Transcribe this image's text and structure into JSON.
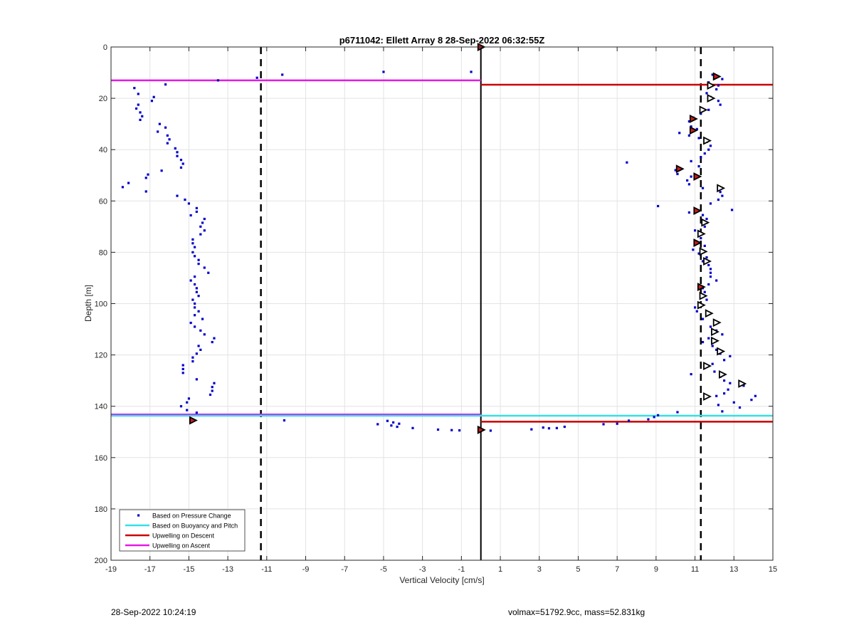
{
  "chart_data": {
    "type": "scatter",
    "title": "p6711042: Ellett Array 8 28-Sep-2022 06:32:55Z",
    "xlabel": "Vertical Velocity [cm/s]",
    "ylabel": "Depth [m]",
    "xlim": [
      -19,
      15
    ],
    "ylim": [
      0,
      200
    ],
    "y_reversed": true,
    "grid": true,
    "legend_position": "bottom-left",
    "xticks": [
      -19,
      -17,
      -15,
      -13,
      -11,
      -9,
      -7,
      -5,
      -3,
      -1,
      1,
      3,
      5,
      7,
      9,
      11,
      13,
      15
    ],
    "xtick_labels": [
      "-19",
      "-17",
      "-15",
      "-13",
      "-11",
      "-9",
      "-7",
      "-5",
      "-3",
      "-1",
      "1",
      "3",
      "5",
      "7",
      "9",
      "11",
      "13",
      "15"
    ],
    "yticks": [
      0,
      20,
      40,
      60,
      80,
      100,
      120,
      140,
      160,
      180,
      200
    ],
    "ytick_labels": [
      "0",
      "20",
      "40",
      "60",
      "80",
      "100",
      "120",
      "140",
      "160",
      "180",
      "200"
    ],
    "legend": [
      {
        "label": "Based on Pressure Change",
        "kind": "marker",
        "color": "#0000cc"
      },
      {
        "label": "Based on Buoyancy and Pitch",
        "kind": "line",
        "color": "#33e0e6"
      },
      {
        "label": "Upwelling on Descent",
        "kind": "line",
        "color": "#cc0000"
      },
      {
        "label": "Upwelling on Ascent",
        "kind": "line",
        "color": "#e619e6"
      }
    ],
    "reference_lines": {
      "vertical_solid": [
        0
      ],
      "vertical_dashed": [
        -11.3,
        11.3
      ],
      "solid_color": "#000000",
      "dashed_color": "#000000"
    },
    "upwelling_segments": [
      {
        "series": "Upwelling on Ascent",
        "color": "#e619e6",
        "x": [
          -19,
          0
        ],
        "y": 13
      },
      {
        "series": "Upwelling on Ascent",
        "color": "#e619e6",
        "x": [
          -19,
          0
        ],
        "y": 143.2
      },
      {
        "series": "Upwelling on Descent",
        "color": "#cc0000",
        "x": [
          0,
          15
        ],
        "y": 14.7
      },
      {
        "series": "Upwelling on Descent",
        "color": "#cc0000",
        "x": [
          0,
          15
        ],
        "y": 146
      },
      {
        "series": "Based on Buoyancy and Pitch",
        "color": "#33e0e6",
        "x": [
          -19,
          15
        ],
        "y": 143.7
      }
    ],
    "pressure_change_points": [
      [
        -13.5,
        13
      ],
      [
        -11.5,
        12
      ],
      [
        -10.2,
        10.8
      ],
      [
        -5,
        9.7
      ],
      [
        -0.5,
        9.7
      ],
      [
        -16.2,
        14.6
      ],
      [
        -17.8,
        16
      ],
      [
        -17.6,
        18.3
      ],
      [
        -16.8,
        19.5
      ],
      [
        -16.9,
        21
      ],
      [
        -17.6,
        22.5
      ],
      [
        -17.7,
        24
      ],
      [
        -17.5,
        25.5
      ],
      [
        -17.4,
        27
      ],
      [
        -17.5,
        28.4
      ],
      [
        -16.5,
        30
      ],
      [
        -16.2,
        31.4
      ],
      [
        -16.6,
        33
      ],
      [
        -16.1,
        34.5
      ],
      [
        -16.0,
        36
      ],
      [
        -16.1,
        37.5
      ],
      [
        -15.7,
        39.5
      ],
      [
        -15.6,
        41
      ],
      [
        -15.6,
        42.5
      ],
      [
        -15.4,
        44
      ],
      [
        -15.3,
        45.5
      ],
      [
        -15.4,
        47
      ],
      [
        -16.4,
        48.2
      ],
      [
        -17.1,
        49.7
      ],
      [
        -17.2,
        51
      ],
      [
        -18.1,
        53
      ],
      [
        -18.4,
        54.6
      ],
      [
        -17.2,
        56.3
      ],
      [
        -15.6,
        58
      ],
      [
        -15.2,
        59.5
      ],
      [
        -15.0,
        61
      ],
      [
        -14.6,
        62.8
      ],
      [
        -14.6,
        64.2
      ],
      [
        -14.9,
        65.6
      ],
      [
        -14.2,
        67
      ],
      [
        -14.3,
        68.5
      ],
      [
        -14.4,
        70
      ],
      [
        -14.2,
        71.5
      ],
      [
        -14.4,
        73
      ],
      [
        -14.8,
        75
      ],
      [
        -14.8,
        76.5
      ],
      [
        -14.7,
        78
      ],
      [
        -14.8,
        80
      ],
      [
        -14.7,
        81.5
      ],
      [
        -14.5,
        83
      ],
      [
        -14.5,
        84.5
      ],
      [
        -14.2,
        86
      ],
      [
        -14.0,
        88
      ],
      [
        -14.7,
        89.5
      ],
      [
        -14.9,
        91
      ],
      [
        -14.7,
        92.5
      ],
      [
        -14.6,
        94
      ],
      [
        -14.6,
        95.5
      ],
      [
        -14.5,
        97
      ],
      [
        -14.8,
        98.5
      ],
      [
        -14.7,
        100
      ],
      [
        -14.7,
        101.5
      ],
      [
        -14.5,
        103
      ],
      [
        -14.7,
        104.5
      ],
      [
        -14.3,
        106
      ],
      [
        -14.9,
        107.5
      ],
      [
        -14.7,
        109
      ],
      [
        -14.4,
        110.5
      ],
      [
        -14.2,
        112
      ],
      [
        -13.7,
        113.5
      ],
      [
        -13.8,
        115
      ],
      [
        -14.5,
        116.5
      ],
      [
        -14.4,
        118
      ],
      [
        -14.6,
        119.5
      ],
      [
        -14.8,
        121
      ],
      [
        -14.8,
        122.5
      ],
      [
        -15.3,
        124
      ],
      [
        -15.3,
        125.5
      ],
      [
        -15.3,
        127
      ],
      [
        -14.6,
        129.5
      ],
      [
        -13.7,
        131
      ],
      [
        -13.8,
        132.5
      ],
      [
        -13.8,
        134
      ],
      [
        -13.9,
        135.5
      ],
      [
        -15.0,
        137
      ],
      [
        -15.1,
        138.5
      ],
      [
        -15.4,
        140
      ],
      [
        -15.1,
        141.5
      ],
      [
        -14.6,
        142.5
      ],
      [
        -10.1,
        145.5
      ],
      [
        -4.8,
        145.7
      ],
      [
        -4.5,
        146.3
      ],
      [
        -4.2,
        146.8
      ],
      [
        -5.3,
        147
      ],
      [
        -4.6,
        147.5
      ],
      [
        -4.3,
        148
      ],
      [
        -3.5,
        148.5
      ],
      [
        -2.2,
        149.1
      ],
      [
        -1.5,
        149.3
      ],
      [
        -1.1,
        149.4
      ],
      [
        0.5,
        149.5
      ],
      [
        2.6,
        149
      ],
      [
        3.2,
        148.3
      ],
      [
        3.5,
        148.6
      ],
      [
        3.9,
        148.5
      ],
      [
        4.3,
        148
      ],
      [
        6.3,
        147
      ],
      [
        7.0,
        146.8
      ],
      [
        7.6,
        145.6
      ],
      [
        8.6,
        145.1
      ],
      [
        8.9,
        144.2
      ],
      [
        9.1,
        143.5
      ],
      [
        10.1,
        142.3
      ],
      [
        12.4,
        142
      ],
      [
        11.9,
        10.8
      ],
      [
        12.4,
        12.5
      ],
      [
        11.7,
        13.8
      ],
      [
        12.2,
        15
      ],
      [
        12.1,
        16.5
      ],
      [
        11.6,
        18
      ],
      [
        11.8,
        19.5
      ],
      [
        12.2,
        21
      ],
      [
        12.3,
        22.5
      ],
      [
        11.7,
        24.5
      ],
      [
        11.3,
        26
      ],
      [
        10.9,
        27.5
      ],
      [
        10.7,
        29
      ],
      [
        10.8,
        31
      ],
      [
        11.1,
        32
      ],
      [
        10.2,
        33.5
      ],
      [
        10.7,
        34.5
      ],
      [
        11.2,
        35.5
      ],
      [
        11.6,
        37
      ],
      [
        11.8,
        38.5
      ],
      [
        11.7,
        40
      ],
      [
        11.5,
        41.5
      ],
      [
        11.3,
        43
      ],
      [
        10.8,
        44.5
      ],
      [
        7.5,
        45
      ],
      [
        11.2,
        46.5
      ],
      [
        10.0,
        48
      ],
      [
        10.1,
        49.5
      ],
      [
        10.8,
        50.5
      ],
      [
        10.6,
        52
      ],
      [
        10.7,
        53.5
      ],
      [
        11.4,
        55
      ],
      [
        12.3,
        56.5
      ],
      [
        12.4,
        58
      ],
      [
        12.2,
        59.5
      ],
      [
        11.8,
        61
      ],
      [
        9.1,
        62
      ],
      [
        12.9,
        63.5
      ],
      [
        10.7,
        64.5
      ],
      [
        11.4,
        65.5
      ],
      [
        11.6,
        67
      ],
      [
        11.6,
        68.5
      ],
      [
        11.5,
        70
      ],
      [
        11.0,
        71.5
      ],
      [
        11.2,
        73
      ],
      [
        11.3,
        74.5
      ],
      [
        11.1,
        76
      ],
      [
        11.5,
        77.5
      ],
      [
        10.9,
        79
      ],
      [
        11.2,
        80.5
      ],
      [
        11.6,
        82
      ],
      [
        11.4,
        83.5
      ],
      [
        11.7,
        85
      ],
      [
        11.8,
        86.5
      ],
      [
        11.8,
        88
      ],
      [
        11.8,
        89.5
      ],
      [
        12.1,
        91
      ],
      [
        11.7,
        92.5
      ],
      [
        11.4,
        94
      ],
      [
        11.5,
        95.5
      ],
      [
        11.3,
        97
      ],
      [
        11.6,
        98.5
      ],
      [
        11.2,
        100
      ],
      [
        11.0,
        101.5
      ],
      [
        11.1,
        103
      ],
      [
        11.6,
        104.5
      ],
      [
        11.4,
        106
      ],
      [
        12.0,
        107.5
      ],
      [
        11.8,
        109
      ],
      [
        12.1,
        110.5
      ],
      [
        12.4,
        112
      ],
      [
        11.7,
        113.5
      ],
      [
        11.4,
        115
      ],
      [
        11.9,
        116.5
      ],
      [
        12.1,
        118
      ],
      [
        12.3,
        119.5
      ],
      [
        12.8,
        120.5
      ],
      [
        12.5,
        122
      ],
      [
        11.9,
        123.5
      ],
      [
        11.5,
        125
      ],
      [
        12.0,
        126.5
      ],
      [
        10.8,
        127.5
      ],
      [
        12.3,
        128.5
      ],
      [
        12.5,
        130
      ],
      [
        12.8,
        131
      ],
      [
        13.5,
        132
      ],
      [
        12.7,
        133.5
      ],
      [
        12.5,
        135
      ],
      [
        12.1,
        136
      ],
      [
        14.1,
        136
      ],
      [
        13.9,
        137.5
      ],
      [
        13.0,
        138.5
      ],
      [
        12.2,
        139.5
      ],
      [
        13.3,
        140.5
      ]
    ],
    "descent_markers": [
      [
        0,
        0
      ],
      [
        12.1,
        11.5
      ],
      [
        10.9,
        28
      ],
      [
        10.9,
        32.5
      ],
      [
        10.2,
        47.5
      ],
      [
        11.1,
        50.5
      ],
      [
        11.1,
        63.8
      ],
      [
        11.1,
        76.3
      ],
      [
        11.3,
        93.5
      ],
      [
        -14.8,
        145.5
      ],
      [
        0,
        149.2
      ]
    ],
    "ascent_markers": [
      [
        11.8,
        15
      ],
      [
        11.8,
        20
      ],
      [
        11.4,
        24.5
      ],
      [
        11.6,
        36.5
      ],
      [
        12.3,
        55
      ],
      [
        11.5,
        68.4
      ],
      [
        11.3,
        72.8
      ],
      [
        11.4,
        79.7
      ],
      [
        11.6,
        83.5
      ],
      [
        11.4,
        97
      ],
      [
        11.3,
        100.6
      ],
      [
        11.7,
        103.8
      ],
      [
        12.1,
        107.4
      ],
      [
        12.0,
        111
      ],
      [
        12.0,
        114.5
      ],
      [
        12.3,
        118.6
      ],
      [
        11.6,
        124.3
      ],
      [
        12.4,
        127.6
      ],
      [
        13.4,
        131.2
      ],
      [
        11.6,
        136.2
      ]
    ]
  },
  "footer": {
    "timestamp": "28-Sep-2022 10:24:19",
    "stats": "volmax=51792.9cc, mass=52.831kg"
  }
}
